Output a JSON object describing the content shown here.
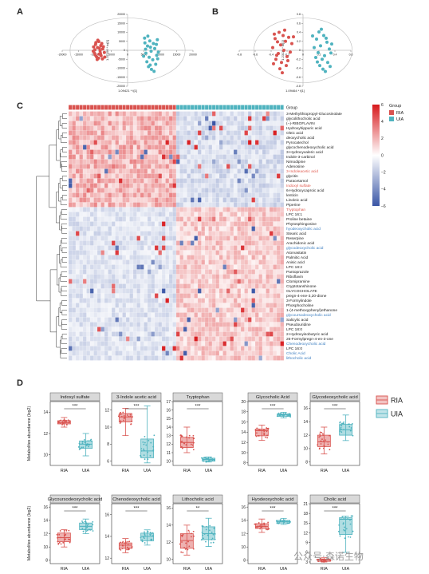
{
  "panels": {
    "a": "A",
    "b": "B",
    "c": "C",
    "d": "D"
  },
  "colors": {
    "ria": "#d9534f",
    "uia": "#4fb3bf",
    "hm_high": "#d7191c",
    "hm_mid": "#ffffff",
    "hm_low": "#3a56a6"
  },
  "watermark": "公众号·森诺生物",
  "chart_data": [
    {
      "id": "pca-a",
      "type": "scatter",
      "xlabel": "1.09421 * t[1]",
      "ylabel": "1.37156 * to[1]",
      "xlim": [
        -20000,
        20000
      ],
      "ylim": [
        -20000,
        20000
      ],
      "xticks": [
        "-20000",
        "-15000",
        "-10000",
        "-5000",
        "0",
        "5000",
        "10000",
        "15000",
        "20000"
      ],
      "yticks": [
        "20000",
        "15000",
        "10000",
        "5000",
        "0",
        "-5000",
        "-10000",
        "-15000",
        "-20000"
      ],
      "series": [
        {
          "name": "RIA",
          "color": "#d9534f",
          "points": [
            [
              -9800,
              3200
            ],
            [
              -9200,
              1500
            ],
            [
              -10500,
              -500
            ],
            [
              -8700,
              -2100
            ],
            [
              -9500,
              -3600
            ],
            [
              -8200,
              2600
            ],
            [
              -7600,
              800
            ],
            [
              -10100,
              -1700
            ],
            [
              -8900,
              -4400
            ],
            [
              -7100,
              -1200
            ],
            [
              -9700,
              4300
            ],
            [
              -8400,
              -300
            ],
            [
              -7900,
              3800
            ],
            [
              -10400,
              1900
            ],
            [
              -8100,
              -3000
            ],
            [
              -9300,
              -5100
            ],
            [
              -7400,
              2000
            ],
            [
              -8800,
              4900
            ],
            [
              -9900,
              -2600
            ],
            [
              -7000,
              -3800
            ],
            [
              -8600,
              1100
            ],
            [
              -10000,
              300
            ],
            [
              -7700,
              -4800
            ],
            [
              -9100,
              5600
            ],
            [
              -8300,
              -1700
            ]
          ]
        },
        {
          "name": "UIA",
          "color": "#4fb3bf",
          "points": [
            [
              5200,
              6800
            ],
            [
              6800,
              5200
            ],
            [
              7900,
              3800
            ],
            [
              6100,
              2400
            ],
            [
              8300,
              1000
            ],
            [
              7200,
              -500
            ],
            [
              5600,
              -1600
            ],
            [
              8900,
              -2800
            ],
            [
              6600,
              -3900
            ],
            [
              7700,
              -5300
            ],
            [
              5900,
              -6400
            ],
            [
              8600,
              -7800
            ],
            [
              6400,
              -9100
            ],
            [
              7300,
              -10600
            ],
            [
              5300,
              4100
            ],
            [
              9100,
              5900
            ],
            [
              4900,
              -3300
            ],
            [
              9400,
              -1000
            ],
            [
              6200,
              7900
            ],
            [
              8100,
              -11700
            ],
            [
              7000,
              1700
            ],
            [
              5500,
              600
            ],
            [
              8800,
              3300
            ],
            [
              6900,
              -8200
            ],
            [
              9200,
              -4700
            ]
          ]
        }
      ]
    },
    {
      "id": "pca-b",
      "type": "scatter",
      "xlabel": "1.09464 * t[1]",
      "ylabel": "1.23111 * to[1]",
      "xlim": [
        -0.8,
        0.6
      ],
      "ylim": [
        -0.8,
        0.8
      ],
      "xticks": [
        "-0.8",
        "-0.6",
        "-0.4",
        "-0.2",
        "0",
        "0.2",
        "0.4",
        "0.6"
      ],
      "yticks": [
        "0.8",
        "0.6",
        "0.4",
        "0.2",
        "0",
        "-0.2",
        "-0.4",
        "-0.6",
        "-0.8"
      ],
      "series": [
        {
          "name": "RIA",
          "color": "#d9534f",
          "points": [
            [
              -0.3,
              0.4
            ],
            [
              -0.25,
              0.33
            ],
            [
              -0.35,
              0.26
            ],
            [
              -0.22,
              0.2
            ],
            [
              -0.28,
              0.12
            ],
            [
              -0.38,
              0.06
            ],
            [
              -0.24,
              0.0
            ],
            [
              -0.31,
              -0.07
            ],
            [
              -0.2,
              -0.14
            ],
            [
              -0.34,
              -0.2
            ],
            [
              -0.27,
              -0.27
            ],
            [
              -0.21,
              -0.34
            ],
            [
              -0.36,
              0.36
            ],
            [
              -0.18,
              0.29
            ],
            [
              -0.29,
              -0.41
            ],
            [
              -0.14,
              0.15
            ],
            [
              -0.33,
              -0.11
            ],
            [
              -0.23,
              0.45
            ],
            [
              -0.26,
              -0.5
            ],
            [
              -0.16,
              -0.04
            ],
            [
              -0.37,
              -0.3
            ],
            [
              -0.12,
              0.3
            ],
            [
              -0.19,
              -0.23
            ],
            [
              -0.32,
              0.19
            ]
          ]
        },
        {
          "name": "UIA",
          "color": "#4fb3bf",
          "points": [
            [
              0.2,
              0.41
            ],
            [
              0.26,
              0.33
            ],
            [
              0.17,
              0.25
            ],
            [
              0.3,
              0.18
            ],
            [
              0.22,
              0.1
            ],
            [
              0.33,
              0.03
            ],
            [
              0.19,
              -0.05
            ],
            [
              0.27,
              -0.12
            ],
            [
              0.24,
              -0.2
            ],
            [
              0.31,
              -0.27
            ],
            [
              0.14,
              0.06
            ],
            [
              0.21,
              -0.34
            ],
            [
              0.29,
              0.27
            ],
            [
              0.16,
              -0.16
            ],
            [
              0.35,
              -0.06
            ],
            [
              0.25,
              -0.42
            ],
            [
              0.12,
              0.32
            ],
            [
              0.36,
              0.14
            ],
            [
              0.18,
              -0.26
            ],
            [
              0.23,
              0.47
            ],
            [
              0.28,
              -0.47
            ],
            [
              0.34,
              -0.36
            ]
          ]
        }
      ]
    },
    {
      "id": "heatmap-c",
      "type": "heatmap",
      "legend_title": "Group",
      "groups": [
        {
          "name": "RIA",
          "color": "#d9534f",
          "count": 30
        },
        {
          "name": "UIA",
          "color": "#4fb3bf",
          "count": 30
        }
      ],
      "scale_ticks": [
        "6",
        "4",
        "2",
        "0",
        "−2",
        "−4",
        "−6"
      ],
      "scale_range": [
        -6,
        6
      ],
      "rows": [
        {
          "name": "3-Methylthiopropyl-Glucosinolate",
          "color": "#222222"
        },
        {
          "name": "glycolithocholic acid",
          "color": "#222222"
        },
        {
          "name": "(−)-RIBOFLAVIN",
          "color": "#222222"
        },
        {
          "name": "Hydroxyhippuric acid",
          "color": "#222222"
        },
        {
          "name": "Oleic acid",
          "color": "#222222"
        },
        {
          "name": "deoxycholic acid",
          "color": "#222222"
        },
        {
          "name": "Pyrocatechol",
          "color": "#222222"
        },
        {
          "name": "glycochenodeoxycholic acid",
          "color": "#222222"
        },
        {
          "name": "3-Hydroxyvaleric acid",
          "color": "#222222"
        },
        {
          "name": "Indole-3-carbinol",
          "color": "#222222"
        },
        {
          "name": "Nimodipine",
          "color": "#222222"
        },
        {
          "name": "Adenosine",
          "color": "#222222"
        },
        {
          "name": "3-Indoleacetic acid",
          "color": "#e05a4f"
        },
        {
          "name": "glycitin",
          "color": "#222222"
        },
        {
          "name": "Paracetamol",
          "color": "#222222"
        },
        {
          "name": "Indoxyl sulfate",
          "color": "#e05a4f"
        },
        {
          "name": "6-Hydroxycaproic acid",
          "color": "#222222"
        },
        {
          "name": "lenticin",
          "color": "#222222"
        },
        {
          "name": "Linoleic acid",
          "color": "#222222"
        },
        {
          "name": "Piperine",
          "color": "#222222"
        },
        {
          "name": "Tryptophan",
          "color": "#e05a4f"
        },
        {
          "name": "LPC 16:1",
          "color": "#222222"
        },
        {
          "name": "Proline betaine",
          "color": "#222222"
        },
        {
          "name": "Phytosphingosine",
          "color": "#222222"
        },
        {
          "name": "hyodeoxycholic acid",
          "color": "#3d7fc1"
        },
        {
          "name": "Stearic acid",
          "color": "#222222"
        },
        {
          "name": "Reserpine",
          "color": "#222222"
        },
        {
          "name": "Arachidonic acid",
          "color": "#222222"
        },
        {
          "name": "glycodeoxycholic acid",
          "color": "#3d7fc1"
        },
        {
          "name": "Atorvastatin",
          "color": "#222222"
        },
        {
          "name": "Palmitic Acid",
          "color": "#222222"
        },
        {
          "name": "Anisic acid",
          "color": "#222222"
        },
        {
          "name": "LPC 18:2",
          "color": "#222222"
        },
        {
          "name": "Pantoprazole",
          "color": "#222222"
        },
        {
          "name": "Riboflavin",
          "color": "#222222"
        },
        {
          "name": "Clomipramine",
          "color": "#222222"
        },
        {
          "name": "Cryptotanshinone",
          "color": "#222222"
        },
        {
          "name": "GLYCOCHOLATE",
          "color": "#222222"
        },
        {
          "name": "pregn-4-ene-3,20-dione",
          "color": "#222222"
        },
        {
          "name": "3-Formylindole",
          "color": "#222222"
        },
        {
          "name": "Phosphocholine",
          "color": "#222222"
        },
        {
          "name": "1-(4-methoxyphenyl)ethanone",
          "color": "#222222"
        },
        {
          "name": "glycoursodeoxycholic acid",
          "color": "#3d7fc1"
        },
        {
          "name": "Salicylic acid",
          "color": "#222222"
        },
        {
          "name": "Pseudouridine",
          "color": "#222222"
        },
        {
          "name": "LPC 18:0",
          "color": "#222222"
        },
        {
          "name": "2-Hydroxyisobutyric acid",
          "color": "#222222"
        },
        {
          "name": "26-Formylpregn-4-en-3-one",
          "color": "#222222"
        },
        {
          "name": "Chenodeoxycholic acid",
          "color": "#3d7fc1"
        },
        {
          "name": "LPC 16:0",
          "color": "#222222"
        },
        {
          "name": "Cholic Acid",
          "color": "#3d7fc1"
        },
        {
          "name": "lithocholic acid",
          "color": "#3d7fc1"
        }
      ]
    },
    {
      "id": "boxplots-d",
      "type": "box",
      "ylabel": "Metabolites abundance (log2)",
      "groups": [
        "RIA",
        "UIA"
      ],
      "legend": [
        "RIA",
        "UIA"
      ],
      "plots": [
        {
          "title": "Indoxyl sulfate",
          "sig": "***",
          "ylim": [
            9,
            15
          ],
          "yticks": [
            10,
            12,
            14
          ],
          "ria": [
            12.6,
            12.9,
            13.0,
            13.2,
            13.5
          ],
          "uia": [
            9.9,
            10.6,
            11.0,
            11.3,
            12.0
          ]
        },
        {
          "title": "3-Indole acetic acid",
          "sig": "***",
          "ylim": [
            5.5,
            13
          ],
          "yticks": [
            6,
            8,
            10,
            12
          ],
          "ria": [
            9.0,
            10.6,
            11.2,
            11.6,
            12.2
          ],
          "uia": [
            5.8,
            6.4,
            7.2,
            8.6,
            12.5
          ]
        },
        {
          "title": "Tryptophan",
          "sig": "***",
          "ylim": [
            9.5,
            17
          ],
          "yticks": [
            10,
            11,
            12,
            13,
            14,
            15,
            16,
            17
          ],
          "ria": [
            11.0,
            11.6,
            12.2,
            12.8,
            14.0
          ],
          "uia": [
            9.9,
            10.0,
            10.2,
            10.35,
            10.5
          ]
        },
        {
          "title": "Glycocholic Acid",
          "sig": "***",
          "ylim": [
            7.5,
            20
          ],
          "yticks": [
            8,
            10,
            12,
            14,
            16,
            18,
            20
          ],
          "ria": [
            12.4,
            13.3,
            14.3,
            14.6,
            15.4
          ],
          "uia": [
            16.8,
            17.1,
            17.4,
            17.6,
            17.9
          ]
        },
        {
          "title": "Glycodeoxycholic acid",
          "sig": "***",
          "ylim": [
            7.5,
            17
          ],
          "yticks": [
            8,
            10,
            12,
            14,
            16
          ],
          "ria": [
            9.2,
            10.3,
            11.0,
            12.0,
            13.2
          ],
          "uia": [
            11.2,
            12.0,
            12.8,
            13.6,
            15.0
          ]
        },
        {
          "title": "Glycoursodeoxycholic acid",
          "sig": "***",
          "ylim": [
            7.5,
            16.5
          ],
          "yticks": [
            8,
            10,
            12,
            14,
            16
          ],
          "ria": [
            10.0,
            10.8,
            11.4,
            12.1,
            12.6
          ],
          "uia": [
            12.0,
            12.6,
            13.1,
            13.6,
            14.2
          ]
        },
        {
          "title": "Chenodeoxycholic acid",
          "sig": "***",
          "ylim": [
            11.5,
            17
          ],
          "yticks": [
            12,
            14,
            16
          ],
          "ria": [
            12.5,
            12.9,
            13.2,
            13.4,
            13.8
          ],
          "uia": [
            13.2,
            13.6,
            14.0,
            14.3,
            14.6
          ]
        },
        {
          "title": "Lithocholic acid",
          "sig": "**",
          "ylim": [
            9.5,
            16.5
          ],
          "yticks": [
            10,
            12,
            14,
            16
          ],
          "ria": [
            10.5,
            11.3,
            12.2,
            13.0,
            14.0
          ],
          "uia": [
            11.5,
            12.3,
            13.0,
            13.8,
            14.8
          ]
        },
        {
          "title": "Hyodeoxycholic acid",
          "sig": "***",
          "ylim": [
            7.5,
            16.5
          ],
          "yticks": [
            8,
            10,
            12,
            14,
            16
          ],
          "ria": [
            12.2,
            12.8,
            13.1,
            13.5,
            14.2
          ],
          "uia": [
            13.4,
            13.6,
            13.8,
            14.0,
            14.3
          ]
        },
        {
          "title": "Cholic acid",
          "sig": "***",
          "ylim": [
            2.5,
            21
          ],
          "yticks": [
            3,
            6,
            9,
            12,
            15,
            18,
            21
          ],
          "ria": [
            3.0,
            3.2,
            3.6,
            3.9,
            4.3
          ],
          "uia": [
            6.0,
            11.5,
            16.2,
            16.7,
            17.2
          ]
        }
      ]
    }
  ]
}
